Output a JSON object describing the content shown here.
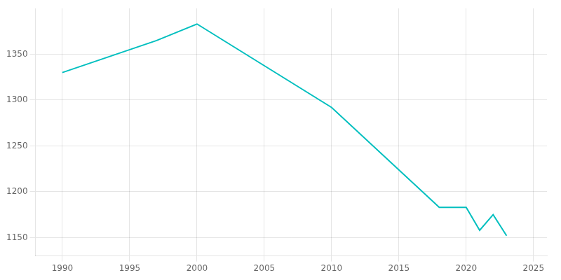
{
  "chart_data": {
    "type": "line",
    "x": [
      1990,
      1997,
      2000,
      2010,
      2018,
      2020,
      2021,
      2022,
      2023
    ],
    "values": [
      1330,
      1365,
      1383,
      1292,
      1183,
      1183,
      1158,
      1175,
      1152
    ],
    "color": "#00BFBF",
    "xlim": [
      1988,
      2026
    ],
    "ylim": [
      1130,
      1400
    ],
    "xticks": [
      1990,
      1995,
      2000,
      2005,
      2010,
      2015,
      2020,
      2025
    ],
    "yticks": [
      1150,
      1200,
      1250,
      1300,
      1350
    ],
    "grid": true
  }
}
